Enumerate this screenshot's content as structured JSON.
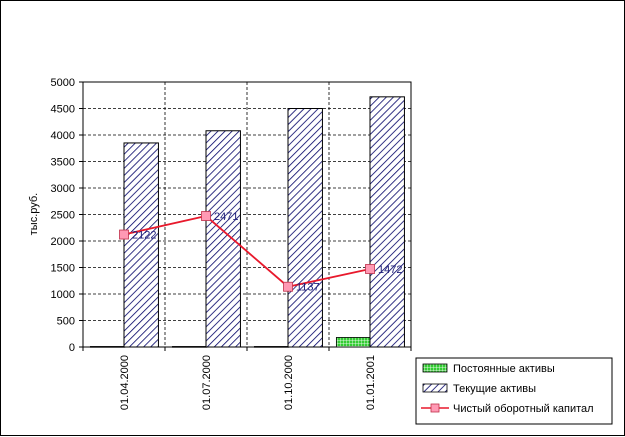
{
  "chart_data": {
    "type": "bar",
    "categories": [
      "01.04.2000",
      "01.07.2000",
      "01.10.2000",
      "01.01.2001"
    ],
    "ylabel": "тыс.руб.",
    "ylim": [
      0,
      5000
    ],
    "yticks": [
      0,
      500,
      1000,
      1500,
      2000,
      2500,
      3000,
      3500,
      4000,
      4500,
      5000
    ],
    "grid": true,
    "legend_position": "bottom-right",
    "series": [
      {
        "name": "Постоянные активы",
        "kind": "bar",
        "pattern": "green-grid",
        "color": "#33cc33",
        "values": [
          10,
          10,
          10,
          180
        ]
      },
      {
        "name": "Текущие активы",
        "kind": "bar",
        "pattern": "diagonal-hatch",
        "color": "#000066",
        "values": [
          3850,
          4080,
          4500,
          4720
        ]
      },
      {
        "name": "Чистый оборотный капитал",
        "kind": "line",
        "color": "#e8192c",
        "marker_color": "#ff99b4",
        "values": [
          2122,
          2471,
          1137,
          1472
        ],
        "labels": [
          "2122",
          "2471",
          "1137",
          "1472"
        ]
      }
    ]
  }
}
